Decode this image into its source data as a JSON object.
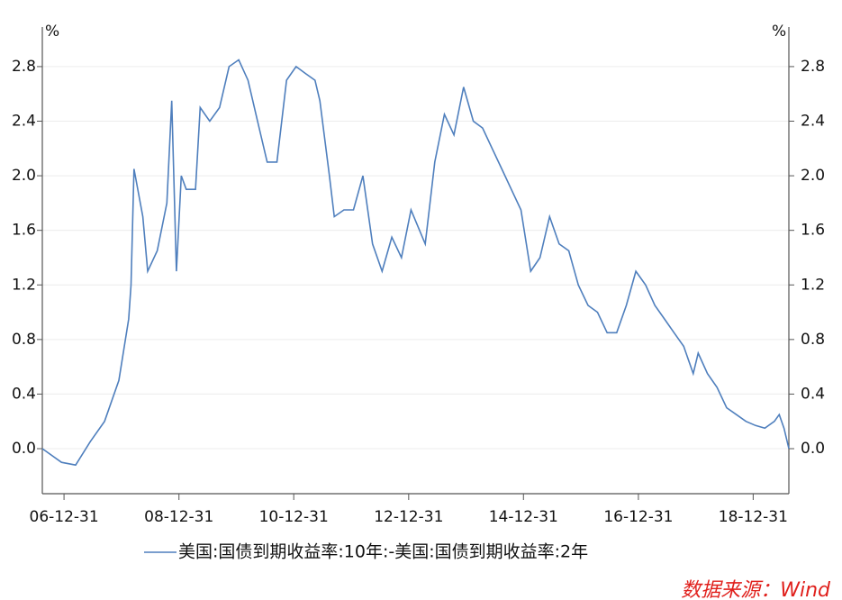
{
  "chart_data": {
    "type": "line",
    "y_unit_left": "%",
    "y_unit_right": "%",
    "source": "数据来源：Wind",
    "grid": true,
    "xlim": [
      "06-08-15",
      "19-08-15"
    ],
    "xticks": [
      "06-12-31",
      "08-12-31",
      "10-12-31",
      "12-12-31",
      "14-12-31",
      "16-12-31",
      "18-12-31"
    ],
    "ylim": [
      -0.33,
      3.09
    ],
    "yticks": [
      {
        "value": 0,
        "label": "0.0"
      },
      0.4,
      0.8,
      1.2,
      1.6,
      {
        "value": 2,
        "label": "2.0"
      },
      2.4,
      2.8
    ],
    "x": [
      "06-08-15",
      "06-12-15",
      "07-03-15",
      "07-06-15",
      "07-09-15",
      "07-12-15",
      "08-02-15",
      "08-03-01",
      "08-03-20",
      "08-05-15",
      "08-06-15",
      "08-08-15",
      "08-10-15",
      "08-11-15",
      "08-12-15",
      "09-01-15",
      "09-02-15",
      "09-04-15",
      "09-05-15",
      "09-07-15",
      "09-09-15",
      "09-11-15",
      "10-01-15",
      "10-03-15",
      "10-05-15",
      "10-07-15",
      "10-09-15",
      "10-11-15",
      "11-01-15",
      "11-03-15",
      "11-05-15",
      "11-06-15",
      "11-08-15",
      "11-09-15",
      "11-11-15",
      "12-01-15",
      "12-03-15",
      "12-05-15",
      "12-07-15",
      "12-09-15",
      "12-11-15",
      "13-01-15",
      "13-04-15",
      "13-06-15",
      "13-08-15",
      "13-10-15",
      "13-12-15",
      "14-02-15",
      "14-04-15",
      "14-06-15",
      "14-08-15",
      "14-10-15",
      "14-12-15",
      "15-02-15",
      "15-04-15",
      "15-06-15",
      "15-08-15",
      "15-10-15",
      "15-12-15",
      "16-02-15",
      "16-04-15",
      "16-06-15",
      "16-08-15",
      "16-10-15",
      "16-12-15",
      "17-02-15",
      "17-04-15",
      "17-06-15",
      "17-08-15",
      "17-10-15",
      "17-12-15",
      "18-01-15",
      "18-03-15",
      "18-05-15",
      "18-07-15",
      "18-09-15",
      "18-11-15",
      "19-01-15",
      "19-03-15",
      "19-05-15",
      "19-06-15",
      "19-07-15",
      "19-08-15"
    ],
    "series": [
      {
        "name": "美国:国债到期收益率:10年:-美国:国债到期收益率:2年",
        "color": "#4f7fbd",
        "values": [
          0.0,
          -0.1,
          -0.12,
          0.05,
          0.2,
          0.5,
          0.95,
          1.2,
          2.05,
          1.7,
          1.3,
          1.45,
          1.8,
          2.55,
          1.3,
          2.0,
          1.9,
          1.9,
          2.5,
          2.4,
          2.5,
          2.8,
          2.85,
          2.7,
          2.4,
          2.1,
          2.1,
          2.7,
          2.8,
          2.75,
          2.7,
          2.55,
          2.0,
          1.7,
          1.75,
          1.75,
          2.0,
          1.5,
          1.3,
          1.55,
          1.4,
          1.75,
          1.5,
          2.1,
          2.45,
          2.3,
          2.65,
          2.4,
          2.35,
          2.2,
          2.05,
          1.9,
          1.75,
          1.3,
          1.4,
          1.7,
          1.5,
          1.45,
          1.2,
          1.05,
          1.0,
          0.85,
          0.85,
          1.05,
          1.3,
          1.2,
          1.05,
          0.95,
          0.85,
          0.75,
          0.55,
          0.7,
          0.55,
          0.45,
          0.3,
          0.25,
          0.2,
          0.17,
          0.15,
          0.2,
          0.25,
          0.15,
          0.0
        ]
      }
    ]
  }
}
